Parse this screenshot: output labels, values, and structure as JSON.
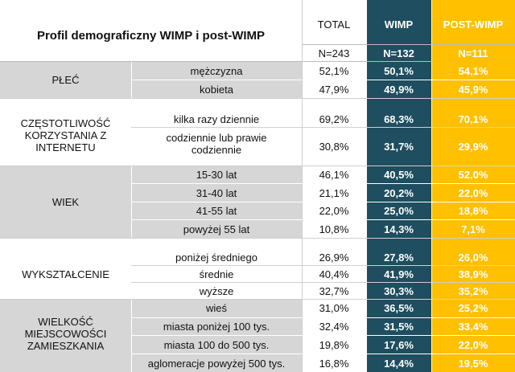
{
  "title": "Profil demograficzny WIMP i post-WIMP",
  "columns": {
    "total": {
      "label": "TOTAL",
      "n": "N=243"
    },
    "wimp": {
      "label": "WIMP",
      "n": "N=132"
    },
    "post": {
      "label": "POST-WIMP",
      "n": "N=111"
    }
  },
  "groups": {
    "plec": "PŁEĆ",
    "czestotliwosc": "CZĘSTOTLIWOŚĆ KORZYSTANIA Z INTERNETU",
    "wiek": "WIEK",
    "wyksztalcenie": "WYKSZTAŁCENIE",
    "wielkosc": "WIELKOŚĆ MIEJSCOWOŚCI ZAMIESZKANIA"
  },
  "rows": [
    {
      "label": "mężczyzna",
      "total": "52,1%",
      "wimp": "50,1%",
      "post": "54,1%"
    },
    {
      "label": "kobieta",
      "total": "47,9%",
      "wimp": "49,9%",
      "post": "45,9%"
    },
    {
      "label": "kilka razy dziennie",
      "total": "69,2%",
      "wimp": "68,3%",
      "post": "70,1%"
    },
    {
      "label": "codziennie lub prawie codziennie",
      "total": "30,8%",
      "wimp": "31,7%",
      "post": "29,9%"
    },
    {
      "label": "15-30 lat",
      "total": "46,1%",
      "wimp": "40,5%",
      "post": "52,0%"
    },
    {
      "label": "31-40 lat",
      "total": "21,1%",
      "wimp": "20,2%",
      "post": "22,0%"
    },
    {
      "label": "41-55 lat",
      "total": "22,0%",
      "wimp": "25,0%",
      "post": "18,8%"
    },
    {
      "label": "powyżej 55 lat",
      "total": "10,8%",
      "wimp": "14,3%",
      "post": "7,1%"
    },
    {
      "label": "poniżej średniego",
      "total": "26,9%",
      "wimp": "27,8%",
      "post": "26,0%"
    },
    {
      "label": "średnie",
      "total": "40,4%",
      "wimp": "41,9%",
      "post": "38,9%"
    },
    {
      "label": "wyższe",
      "total": "32,7%",
      "wimp": "30,3%",
      "post": "35,2%"
    },
    {
      "label": "wieś",
      "total": "31,0%",
      "wimp": "36,5%",
      "post": "25,2%"
    },
    {
      "label": "miasta poniżej 100 tys.",
      "total": "32,4%",
      "wimp": "31,5%",
      "post": "33,4%"
    },
    {
      "label": "miasta 100 do 500 tys.",
      "total": "19,8%",
      "wimp": "17,6%",
      "post": "22,0%"
    },
    {
      "label": "aglomeracje powyżej 500 tys.",
      "total": "16,8%",
      "wimp": "14,4%",
      "post": "19,5%"
    }
  ]
}
